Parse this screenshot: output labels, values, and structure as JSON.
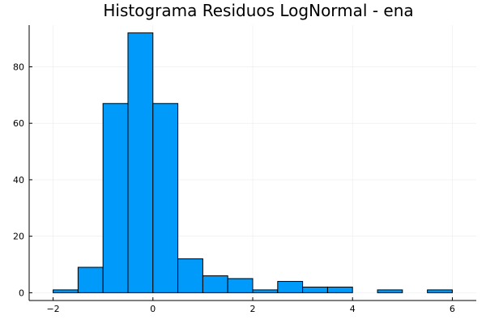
{
  "chart_data": {
    "type": "bar",
    "title": "Histograma Residuos LogNormal - ena",
    "xlabel": "",
    "ylabel": "",
    "bin_edges": [
      -2,
      -1.5,
      -1,
      -0.5,
      0,
      0.5,
      1,
      1.5,
      2,
      2.5,
      3,
      3.5,
      4,
      4.5,
      5,
      5.5,
      6
    ],
    "counts": [
      1,
      9,
      67,
      92,
      67,
      12,
      6,
      5,
      1,
      4,
      2,
      2,
      0,
      1,
      0,
      1
    ],
    "xlim": [
      -2.48,
      6.48
    ],
    "ylim": [
      -2.76,
      94.76
    ],
    "xticks": [
      -2,
      0,
      2,
      4,
      6
    ],
    "yticks": [
      0,
      20,
      40,
      60,
      80
    ],
    "grid": true,
    "legend": "none",
    "colors": {
      "bar_fill": "#009AFA",
      "bar_stroke": "#000000",
      "grid": "#EBEBEB",
      "axis": "#000000"
    }
  }
}
